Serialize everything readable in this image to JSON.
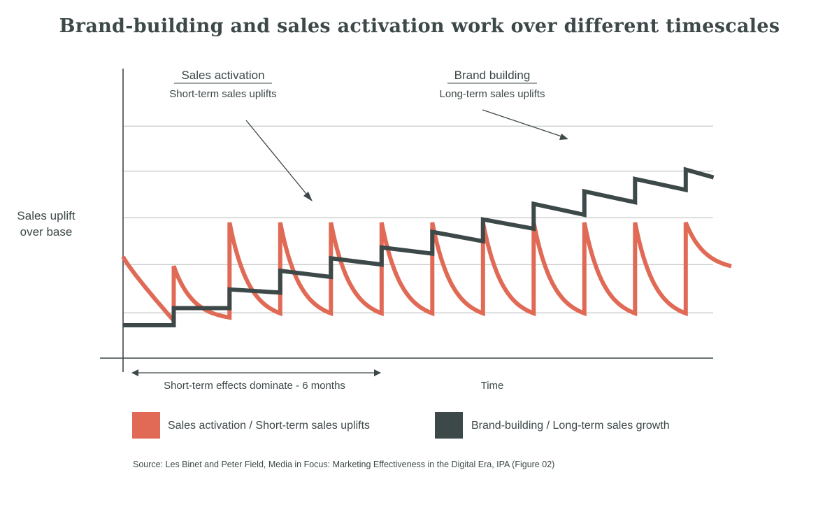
{
  "chart_data": {
    "type": "line",
    "title": "Brand-building and sales activation work over different timescales",
    "ylabel_lines": [
      "Sales uplift",
      "over base"
    ],
    "xlabel": "Time",
    "grid": true,
    "ylim": [
      0,
      7
    ],
    "xlim": [
      0,
      12
    ],
    "annotations": {
      "sales_activation": {
        "title": "Sales activation",
        "subtitle": "Short-term sales uplifts"
      },
      "brand_building": {
        "title": "Brand building",
        "subtitle": "Long-term sales uplifts"
      },
      "short_term_span": {
        "label": "Short-term effects dominate - 6 months",
        "x_range": [
          0,
          5.2
        ]
      }
    },
    "series": [
      {
        "name": "Sales activation / Short-term sales uplifts",
        "color": "#e06a55",
        "shape": "decaying spikes",
        "start_value": 2.2,
        "spike_x": [
          1.0,
          2.1,
          3.1,
          4.1,
          5.1,
          6.1,
          7.1,
          8.1,
          9.1,
          10.1,
          11.1
        ],
        "spike_peaks": [
          1.9,
          3.3,
          3.3,
          3.3,
          3.3,
          3.3,
          3.3,
          3.3,
          3.3,
          3.3,
          3.3
        ],
        "trough_value": 0.15,
        "end_value": 1.75
      },
      {
        "name": "Brand-building / Long-term sales growth",
        "color": "#3d4849",
        "shape": "rising sawtooth",
        "points": [
          [
            0,
            0.0
          ],
          [
            1.0,
            0.0
          ],
          [
            1.0,
            0.55
          ],
          [
            2.1,
            0.55
          ],
          [
            2.1,
            1.15
          ],
          [
            3.1,
            1.05
          ],
          [
            3.1,
            1.75
          ],
          [
            4.1,
            1.55
          ],
          [
            4.1,
            2.15
          ],
          [
            5.1,
            1.95
          ],
          [
            5.1,
            2.5
          ],
          [
            6.1,
            2.3
          ],
          [
            6.1,
            3.0
          ],
          [
            7.1,
            2.7
          ],
          [
            7.1,
            3.4
          ],
          [
            8.1,
            3.1
          ],
          [
            8.1,
            3.9
          ],
          [
            9.1,
            3.55
          ],
          [
            9.1,
            4.3
          ],
          [
            10.1,
            3.95
          ],
          [
            10.1,
            4.7
          ],
          [
            11.1,
            4.35
          ],
          [
            11.1,
            5.0
          ],
          [
            11.65,
            4.75
          ]
        ]
      }
    ],
    "legend": [
      {
        "label": "Sales activation / Short-term sales uplifts",
        "color": "#e06a55"
      },
      {
        "label": "Brand-building / Long-term sales growth",
        "color": "#3d4849"
      }
    ],
    "source": "Source: Les Binet and Peter Field, Media in Focus: Marketing Effectiveness in the Digital Era, IPA (Figure 02)"
  }
}
